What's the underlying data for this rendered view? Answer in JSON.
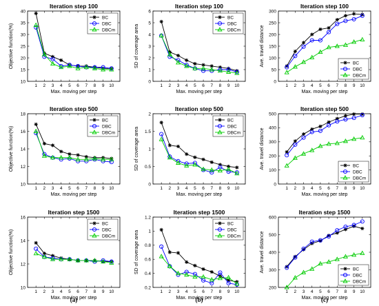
{
  "figure": {
    "subfigure_labels": [
      "(a)",
      "(b)",
      "(c)"
    ]
  },
  "legend_entries": [
    "BC",
    "DBC",
    "DBCm"
  ],
  "series_colors": {
    "BC": "#000000",
    "DBC": "#0000ff",
    "DBCm": "#00cc00"
  },
  "series_markers": {
    "BC": "asterisk",
    "DBC": "circle",
    "DBCm": "triangle"
  },
  "chart_data": [
    {
      "type": "line",
      "title": "Iteration step 100",
      "xlabel": "Max. moving per step",
      "ylabel": "Objective function(%)",
      "x": [
        1,
        2,
        3,
        4,
        5,
        6,
        7,
        8,
        9,
        10
      ],
      "xlim": [
        0,
        11
      ],
      "ylim": [
        10,
        40
      ],
      "yticks": [
        10,
        15,
        20,
        25,
        30,
        35,
        40
      ],
      "legend": "top-right",
      "series": [
        {
          "name": "BC",
          "values": [
            39,
            22,
            20.5,
            19,
            17,
            16.5,
            16.5,
            16,
            15.5,
            15.5
          ]
        },
        {
          "name": "DBC",
          "values": [
            33,
            20.5,
            19.5,
            16.5,
            17,
            16.5,
            16,
            16,
            16,
            15.5
          ]
        },
        {
          "name": "DBCm",
          "values": [
            34,
            21.5,
            17.5,
            16,
            16.5,
            15.5,
            16,
            15.5,
            15,
            15
          ]
        }
      ]
    },
    {
      "type": "line",
      "title": "Iteration step 100",
      "xlabel": "Max. moving per step",
      "ylabel": "SD of coverage area",
      "x": [
        1,
        2,
        3,
        4,
        5,
        6,
        7,
        8,
        9,
        10
      ],
      "xlim": [
        0,
        11
      ],
      "ylim": [
        0,
        6
      ],
      "yticks": [
        0,
        1,
        2,
        3,
        4,
        5,
        6
      ],
      "legend": "top-right",
      "series": [
        {
          "name": "BC",
          "values": [
            5.1,
            2.5,
            2.2,
            1.8,
            1.5,
            1.4,
            1.3,
            1.2,
            1.1,
            0.9
          ]
        },
        {
          "name": "DBC",
          "values": [
            3.9,
            2.1,
            1.8,
            1.4,
            1.1,
            0.9,
            0.9,
            1.0,
            1.0,
            0.8
          ]
        },
        {
          "name": "DBCm",
          "values": [
            3.9,
            2.3,
            1.6,
            1.3,
            1.1,
            1.1,
            1.0,
            0.9,
            0.8,
            0.7
          ]
        }
      ]
    },
    {
      "type": "line",
      "title": "Iteration step 100",
      "xlabel": "Max. moving per step",
      "ylabel": "Ave. travel distance",
      "x": [
        1,
        2,
        3,
        4,
        5,
        6,
        7,
        8,
        9,
        10
      ],
      "xlim": [
        0,
        11
      ],
      "ylim": [
        0,
        300
      ],
      "yticks": [
        0,
        50,
        100,
        150,
        200,
        250,
        300
      ],
      "legend": "bottom-right",
      "series": [
        {
          "name": "BC",
          "values": [
            65,
            128,
            165,
            200,
            222,
            228,
            263,
            280,
            288,
            285
          ]
        },
        {
          "name": "DBC",
          "values": [
            60,
            108,
            148,
            175,
            175,
            210,
            245,
            258,
            265,
            280
          ]
        },
        {
          "name": "DBCm",
          "values": [
            38,
            62,
            82,
            102,
            125,
            145,
            150,
            155,
            168,
            178
          ]
        }
      ]
    },
    {
      "type": "line",
      "title": "Iteration step 500",
      "xlabel": "Max. moving per step",
      "ylabel": "Objective function(%)",
      "x": [
        1,
        2,
        3,
        4,
        5,
        6,
        7,
        8,
        9,
        10
      ],
      "xlim": [
        0,
        11
      ],
      "ylim": [
        10,
        18
      ],
      "yticks": [
        10,
        12,
        14,
        16,
        18
      ],
      "legend": "top-right",
      "series": [
        {
          "name": "BC",
          "values": [
            16.8,
            14.6,
            14.4,
            13.7,
            13.4,
            13.3,
            13.1,
            13.0,
            13.0,
            12.9
          ]
        },
        {
          "name": "DBC",
          "values": [
            15.8,
            13.4,
            13.0,
            12.8,
            12.9,
            12.6,
            12.6,
            12.8,
            12.6,
            12.5
          ]
        },
        {
          "name": "DBCm",
          "values": [
            16.0,
            13.2,
            13.0,
            13.0,
            13.0,
            12.8,
            12.8,
            12.9,
            12.8,
            12.8
          ]
        }
      ]
    },
    {
      "type": "line",
      "title": "Iteration step 500",
      "xlabel": "Max. moving per step",
      "ylabel": "SD of coverage area",
      "x": [
        1,
        2,
        3,
        4,
        5,
        6,
        7,
        8,
        9,
        10
      ],
      "xlim": [
        0,
        11
      ],
      "ylim": [
        0,
        2
      ],
      "yticks": [
        0,
        0.5,
        1,
        1.5,
        2
      ],
      "legend": "top-right",
      "series": [
        {
          "name": "BC",
          "values": [
            1.75,
            1.1,
            1.07,
            0.85,
            0.76,
            0.7,
            0.62,
            0.55,
            0.5,
            0.47
          ]
        },
        {
          "name": "DBC",
          "values": [
            1.42,
            0.78,
            0.65,
            0.58,
            0.6,
            0.4,
            0.33,
            0.48,
            0.35,
            0.33
          ]
        },
        {
          "name": "DBCm",
          "values": [
            1.27,
            0.75,
            0.6,
            0.52,
            0.55,
            0.42,
            0.4,
            0.38,
            0.42,
            0.3
          ]
        }
      ]
    },
    {
      "type": "line",
      "title": "Iteration step 500",
      "xlabel": "Max. moving per step",
      "ylabel": "Ave. travel distance",
      "x": [
        1,
        2,
        3,
        4,
        5,
        6,
        7,
        8,
        9,
        10
      ],
      "xlim": [
        0,
        11
      ],
      "ylim": [
        0,
        500
      ],
      "yticks": [
        0,
        100,
        200,
        300,
        400,
        500
      ],
      "legend": "bottom-right",
      "series": [
        {
          "name": "BC",
          "values": [
            228,
            305,
            355,
            390,
            410,
            440,
            465,
            485,
            497,
            497
          ]
        },
        {
          "name": "DBC",
          "values": [
            205,
            280,
            330,
            370,
            378,
            418,
            445,
            460,
            470,
            490
          ]
        },
        {
          "name": "DBCm",
          "values": [
            130,
            185,
            215,
            240,
            270,
            285,
            290,
            305,
            320,
            330
          ]
        }
      ]
    },
    {
      "type": "line",
      "title": "Iteration step 1500",
      "xlabel": "Max. moving per step",
      "ylabel": "Objective function(%)",
      "x": [
        1,
        2,
        3,
        4,
        5,
        6,
        7,
        8,
        9,
        10
      ],
      "xlim": [
        0,
        11
      ],
      "ylim": [
        10,
        16
      ],
      "yticks": [
        10,
        12,
        14,
        16
      ],
      "legend": "top-right",
      "series": [
        {
          "name": "BC",
          "values": [
            13.8,
            12.9,
            12.7,
            12.5,
            12.4,
            12.3,
            12.3,
            12.3,
            12.2,
            12.2
          ]
        },
        {
          "name": "DBC",
          "values": [
            13.3,
            12.6,
            12.5,
            12.4,
            12.4,
            12.3,
            12.3,
            12.2,
            12.3,
            12.2
          ]
        },
        {
          "name": "DBCm",
          "values": [
            12.9,
            12.6,
            12.4,
            12.4,
            12.4,
            12.3,
            12.3,
            12.3,
            12.2,
            12.1
          ]
        }
      ]
    },
    {
      "type": "line",
      "title": "Iteration step 1500",
      "xlabel": "Max. moving per step",
      "ylabel": "SD of coverage area",
      "x": [
        1,
        2,
        3,
        4,
        5,
        6,
        7,
        8,
        9,
        10
      ],
      "xlim": [
        0,
        11
      ],
      "ylim": [
        0.2,
        1.2
      ],
      "yticks": [
        0.2,
        0.4,
        0.6,
        0.8,
        1,
        1.2
      ],
      "legend": "top-right",
      "series": [
        {
          "name": "BC",
          "values": [
            1.02,
            0.7,
            0.69,
            0.56,
            0.51,
            0.46,
            0.42,
            0.36,
            0.3,
            0.28
          ]
        },
        {
          "name": "DBC",
          "values": [
            0.78,
            0.5,
            0.38,
            0.42,
            0.39,
            0.3,
            0.26,
            0.41,
            0.26,
            0.24
          ]
        },
        {
          "name": "DBCm",
          "values": [
            0.64,
            0.5,
            0.4,
            0.38,
            0.35,
            0.35,
            0.31,
            0.33,
            0.34,
            0.25
          ]
        }
      ]
    },
    {
      "type": "line",
      "title": "Iteration step 1500",
      "xlabel": "Max. moving per step",
      "ylabel": "Ave. travel distance",
      "x": [
        1,
        2,
        3,
        4,
        5,
        6,
        7,
        8,
        9,
        10
      ],
      "xlim": [
        0,
        11
      ],
      "ylim": [
        200,
        600
      ],
      "yticks": [
        200,
        300,
        400,
        500,
        600
      ],
      "legend": "bottom-right",
      "series": [
        {
          "name": "BC",
          "values": [
            318,
            375,
            415,
            450,
            465,
            495,
            510,
            530,
            548,
            535
          ]
        },
        {
          "name": "DBC",
          "values": [
            312,
            370,
            420,
            460,
            468,
            490,
            525,
            545,
            555,
            575
          ]
        },
        {
          "name": "DBCm",
          "values": [
            200,
            255,
            285,
            305,
            335,
            345,
            360,
            375,
            385,
            395
          ]
        }
      ]
    }
  ]
}
